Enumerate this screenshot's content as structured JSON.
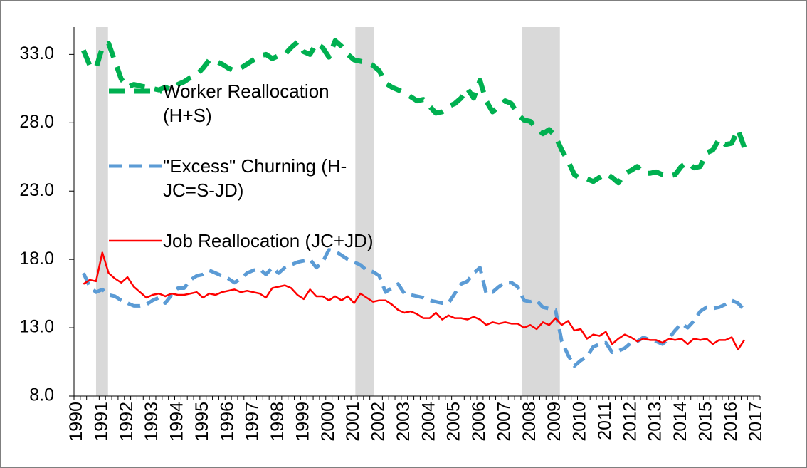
{
  "chart_data": {
    "type": "line",
    "categories": [
      "1990",
      null,
      null,
      null,
      "1991",
      null,
      null,
      null,
      "1992",
      null,
      null,
      null,
      "1993",
      null,
      null,
      null,
      "1994",
      null,
      null,
      null,
      "1995",
      null,
      null,
      null,
      "1996",
      null,
      null,
      null,
      "1997",
      null,
      null,
      null,
      "1998",
      null,
      null,
      null,
      "1999",
      null,
      null,
      null,
      "2000",
      null,
      null,
      null,
      "2001",
      null,
      null,
      null,
      "2002",
      null,
      null,
      null,
      "2003",
      null,
      null,
      null,
      "2004",
      null,
      null,
      null,
      "2005",
      null,
      null,
      null,
      "2006",
      null,
      null,
      null,
      "2007",
      null,
      null,
      null,
      "2008",
      null,
      null,
      null,
      "2009",
      null,
      null,
      null,
      "2010",
      null,
      null,
      null,
      "2011",
      null,
      null,
      null,
      "2012",
      null,
      null,
      null,
      "2013",
      null,
      null,
      null,
      "2014",
      null,
      null,
      null,
      "2015",
      null,
      null,
      null,
      "2016",
      null,
      null,
      null,
      "2017"
    ],
    "series": [
      {
        "name": "Worker Reallocation (H+S)",
        "color": "#00b050",
        "dash": "22 14",
        "width": 7,
        "values": [
          null,
          33.3,
          32.2,
          32.0,
          33.5,
          33.8,
          32.5,
          31.2,
          30.6,
          30.8,
          30.7,
          30.6,
          30.5,
          30.4,
          30.6,
          30.4,
          30.8,
          31.0,
          31.3,
          31.5,
          32.0,
          32.6,
          32.5,
          32.3,
          32.0,
          31.8,
          32.0,
          32.3,
          32.6,
          32.9,
          33.0,
          32.7,
          32.9,
          33.0,
          33.5,
          33.9,
          33.2,
          33.0,
          33.8,
          33.5,
          32.8,
          34.0,
          33.6,
          33.0,
          32.6,
          32.5,
          32.4,
          32.2,
          31.8,
          30.9,
          30.6,
          30.4,
          30.2,
          29.9,
          29.6,
          29.7,
          29.2,
          28.7,
          28.8,
          29.2,
          29.4,
          29.8,
          30.5,
          29.8,
          31.1,
          29.6,
          28.8,
          29.2,
          29.6,
          29.4,
          28.6,
          28.2,
          28.1,
          27.6,
          27.2,
          27.5,
          27.0,
          26.0,
          25.2,
          24.2,
          23.9,
          23.9,
          23.7,
          24.0,
          24.3,
          24.0,
          23.6,
          24.3,
          24.5,
          24.8,
          24.3,
          24.3,
          24.4,
          24.2,
          24.1,
          24.2,
          24.8,
          25.1,
          24.7,
          24.8,
          25.8,
          26.0,
          26.8,
          26.4,
          26.5,
          27.5,
          26.2,
          null,
          null
        ]
      },
      {
        "name": "\"Excess\" Churning (H-JC=S-JD)",
        "color": "#5b9bd5",
        "dash": "18 10",
        "width": 5,
        "values": [
          null,
          17.0,
          16.0,
          15.6,
          15.8,
          15.4,
          15.3,
          15.0,
          14.8,
          14.6,
          14.6,
          14.7,
          15.0,
          15.2,
          14.8,
          15.4,
          15.9,
          15.9,
          16.5,
          16.8,
          16.9,
          17.2,
          17.0,
          16.8,
          16.6,
          16.3,
          16.6,
          17.0,
          17.2,
          17.3,
          16.9,
          17.4,
          17.0,
          17.4,
          17.6,
          17.8,
          17.9,
          18.0,
          17.4,
          17.8,
          18.7,
          18.6,
          18.3,
          18.0,
          17.8,
          17.6,
          17.2,
          17.1,
          16.8,
          15.6,
          15.9,
          16.2,
          15.5,
          15.4,
          15.3,
          15.2,
          15.0,
          14.9,
          14.8,
          14.8,
          15.5,
          16.2,
          16.4,
          17.0,
          17.4,
          15.5,
          15.6,
          16.0,
          16.3,
          16.3,
          16.0,
          15.0,
          14.9,
          15.0,
          14.5,
          14.4,
          14.3,
          12.0,
          11.0,
          10.2,
          10.6,
          10.9,
          11.6,
          11.8,
          11.9,
          11.2,
          11.3,
          11.5,
          11.9,
          12.0,
          12.3,
          12.1,
          12.0,
          11.8,
          12.2,
          12.8,
          13.3,
          13.0,
          13.5,
          14.2,
          14.5,
          14.4,
          14.5,
          14.7,
          15.0,
          14.8,
          14.3,
          null,
          null
        ]
      },
      {
        "name": "Job Reallocation (JC+JD)",
        "color": "#ff0000",
        "dash": "",
        "width": 2.5,
        "values": [
          null,
          16.2,
          16.5,
          16.4,
          18.5,
          17.0,
          16.6,
          16.3,
          16.7,
          16.0,
          15.6,
          15.2,
          15.4,
          15.5,
          15.3,
          15.5,
          15.4,
          15.4,
          15.5,
          15.6,
          15.2,
          15.5,
          15.4,
          15.6,
          15.7,
          15.8,
          15.6,
          15.7,
          15.6,
          15.5,
          15.2,
          15.9,
          16.0,
          16.1,
          15.9,
          15.4,
          15.1,
          15.8,
          15.3,
          15.3,
          15.0,
          15.3,
          15.0,
          15.3,
          14.8,
          15.5,
          15.2,
          14.9,
          15.0,
          15.0,
          14.7,
          14.3,
          14.1,
          14.2,
          14.0,
          13.7,
          13.7,
          14.1,
          13.6,
          13.9,
          13.7,
          13.7,
          13.6,
          13.8,
          13.6,
          13.2,
          13.4,
          13.3,
          13.4,
          13.3,
          13.3,
          13.0,
          13.2,
          12.9,
          13.4,
          13.2,
          13.7,
          13.2,
          13.5,
          12.8,
          12.9,
          12.2,
          12.5,
          12.4,
          12.7,
          11.8,
          12.2,
          12.5,
          12.3,
          12.0,
          12.2,
          12.1,
          12.1,
          11.9,
          12.2,
          12.1,
          12.2,
          11.8,
          12.2,
          12.1,
          12.2,
          11.8,
          12.1,
          12.1,
          12.3,
          11.4,
          12.1,
          null,
          null
        ]
      }
    ],
    "ylim": [
      8,
      35
    ],
    "yticks": [
      {
        "value": 8,
        "label": "8.0"
      },
      {
        "value": 13,
        "label": "13.0"
      },
      {
        "value": 18,
        "label": "18.0"
      },
      {
        "value": 23,
        "label": "23.0"
      },
      {
        "value": 28,
        "label": "28.0"
      },
      {
        "value": 33,
        "label": "33.0"
      }
    ],
    "shaded_ranges": [
      [
        3.5,
        5.4
      ],
      [
        44.7,
        47.7
      ],
      [
        71.2,
        77.2
      ]
    ],
    "shade_color": "#d9d9d9",
    "grid": false
  }
}
